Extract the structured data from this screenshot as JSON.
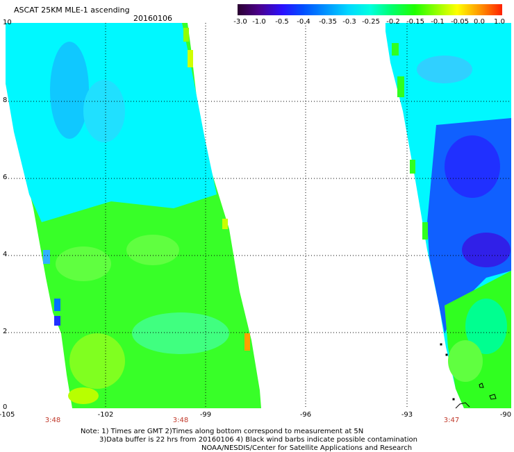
{
  "header": {
    "title": "ASCAT 25KM MLE-1 ascending",
    "date": "20160106"
  },
  "colorbar": {
    "ticks": [
      "-3.0",
      "-1.0",
      "-0.5",
      "-0.4",
      "-0.35",
      "-0.3",
      "-0.25",
      "-0.2",
      "-0.15",
      "-0.1",
      "-0.05",
      "0.0",
      "1.0"
    ],
    "colors": [
      "#2a0030",
      "#5a00a8",
      "#2a10ff",
      "#0040ff",
      "#0088ff",
      "#00c8ff",
      "#00ffff",
      "#00ff80",
      "#30ff00",
      "#a8ff00",
      "#ffff00",
      "#ff8000",
      "#ff2000"
    ]
  },
  "map": {
    "y_ticks": [
      "10",
      "8",
      "6",
      "4",
      "2",
      "0"
    ],
    "x_ticks": [
      "-105",
      "-102",
      "-99",
      "-96",
      "-93",
      "-90"
    ],
    "swath_times": [
      "3:48",
      "3:48",
      "3:47"
    ]
  },
  "notes": [
    "Note: 1) Times are GMT 2)Times along bottom correspond to measurement at 5N",
    "3)Data buffer is 22 hrs from 20160106 4) Black wind barbs indicate possible contamination",
    "NOAA/NESDIS/Center for Satellite Applications and Research"
  ]
}
